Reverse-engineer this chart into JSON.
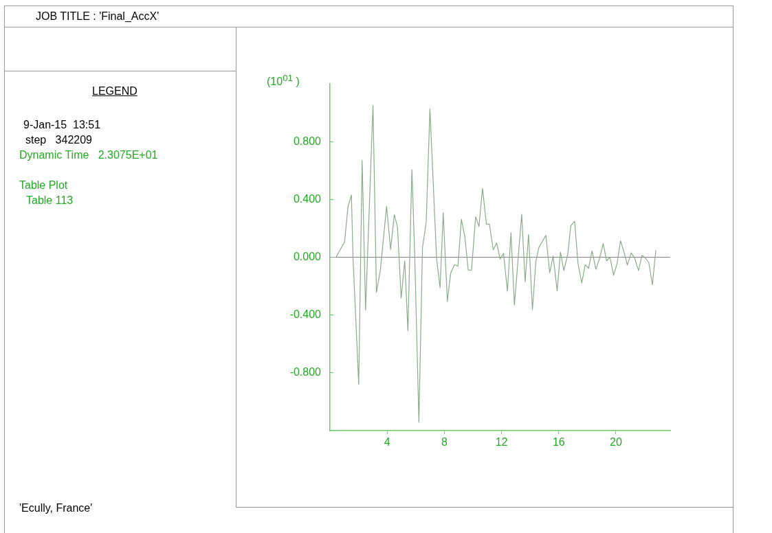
{
  "chart_data": {
    "type": "line",
    "title": "JOB TITLE : 'Final_AccX'",
    "ylabel": "(10$^{01}$ )",
    "annotations": [
      "LEGEND",
      "9-Jan-15  13:51",
      "step   342209",
      "Dynamic Time   2.3075E+01",
      "Table Plot",
      "Table 113",
      "'Ecully, France'"
    ],
    "series": [
      {
        "color": "#8aac8a",
        "x": [
          0,
          0.42,
          1.02,
          1.26,
          1.5,
          1.61,
          2.01,
          2.25,
          2.49,
          3.01,
          3.25,
          3.52,
          3.96,
          4.24,
          4.5,
          4.72,
          4.98,
          5.23,
          5.45,
          5.73,
          5.93,
          6.22,
          6.47,
          6.73,
          6.99,
          7.46,
          7.7,
          7.92,
          8.21,
          8.44,
          8.71,
          8.95,
          9.19,
          9.43,
          9.67,
          9.9,
          10.19,
          10.42,
          10.67,
          10.94,
          11.15,
          11.42,
          11.66,
          11.9,
          12.14,
          12.41,
          12.66,
          12.9,
          13.41,
          13.65,
          13.89,
          14.16,
          14.4,
          14.61,
          15.1,
          15.37,
          15.61,
          15.89,
          16.12,
          16.36,
          16.63,
          16.84,
          17.11,
          17.35,
          17.61,
          17.85,
          18.09,
          18.33,
          18.6,
          18.84,
          19.11,
          19.35,
          19.58,
          19.84,
          20.08,
          20.32,
          20.56,
          20.8,
          21.07,
          21.31,
          21.58,
          21.82,
          22.06,
          22.3,
          22.55,
          22.79
        ],
        "values": [
          0,
          0,
          0.106,
          0.35,
          0.43,
          0,
          -0.878,
          0.67,
          -0.365,
          1.05,
          -0.243,
          -0.092,
          0.352,
          0.054,
          0.294,
          0.21,
          -0.282,
          -0.025,
          -0.508,
          0.606,
          0.005,
          -1.14,
          0.067,
          0.24,
          1.027,
          -0.013,
          -0.21,
          0.308,
          -0.306,
          -0.111,
          -0.052,
          -0.062,
          0.262,
          0.146,
          -0.089,
          -0.089,
          0.281,
          0.213,
          0.476,
          0.229,
          0.229,
          0.051,
          0.098,
          -0.013,
          0.027,
          -0.235,
          0.17,
          -0.33,
          0.297,
          -0.171,
          0.157,
          -0.362,
          -0.029,
          0.067,
          0.151,
          -0.108,
          0.008,
          -0.233,
          0.035,
          -0.092,
          0.019,
          0.217,
          0.249,
          -0.044,
          -0.179,
          -0.052,
          -0.076,
          0.043,
          -0.084,
          -0.013,
          0.095,
          -0.025,
          0,
          -0.124,
          -0.044,
          0.114,
          0.038,
          -0.054,
          0.03,
          -0.006,
          -0.092,
          0.013,
          -0.006,
          -0.038,
          -0.19,
          0.048
        ]
      }
    ],
    "xlim": [
      0,
      23.8
    ],
    "xticks": [
      4,
      8,
      12,
      16,
      20
    ],
    "ylim": [
      -1.2,
      1.2
    ],
    "yticks": [
      {
        "value": -0.8,
        "label": "-0.800"
      },
      {
        "value": -0.4,
        "label": "-0.400"
      },
      {
        "value": 0,
        "label": "0.000"
      },
      {
        "value": 0.4,
        "label": "0.400"
      },
      {
        "value": 0.8,
        "label": "0.800"
      }
    ],
    "ref_lines": [
      {
        "axis": "y",
        "value": 0,
        "color": "#808080"
      }
    ],
    "legend": false,
    "grid": false,
    "marker": "none",
    "line_style": "solid"
  }
}
